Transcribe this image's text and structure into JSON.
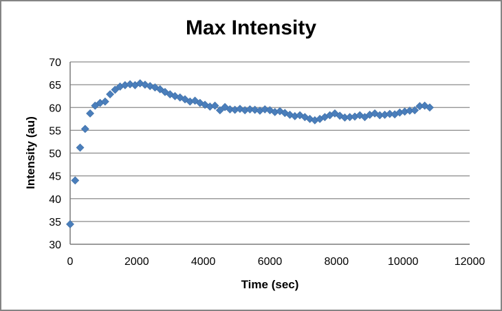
{
  "chart_data": {
    "type": "scatter",
    "title": "Max Intensity",
    "xlabel": "Time (sec)",
    "ylabel": "Intensity (au)",
    "xlim": [
      0,
      12000
    ],
    "ylim": [
      30,
      70
    ],
    "x_ticks": [
      0,
      2000,
      4000,
      6000,
      8000,
      10000,
      12000
    ],
    "y_ticks": [
      30,
      35,
      40,
      45,
      50,
      55,
      60,
      65,
      70
    ],
    "grid": "horizontal",
    "legend": "none",
    "marker": "diamond",
    "marker_color": "#4a7ebb",
    "marker_edge_color": "#3e6ea5",
    "gridline_color": "#8a8a8a",
    "axis_line_color": "#7a7a7a",
    "series": [
      {
        "name": "Max Intensity",
        "x": [
          0,
          150,
          300,
          450,
          600,
          750,
          900,
          1050,
          1200,
          1350,
          1500,
          1650,
          1800,
          1950,
          2100,
          2250,
          2400,
          2550,
          2700,
          2850,
          3000,
          3150,
          3300,
          3450,
          3600,
          3750,
          3900,
          4050,
          4200,
          4350,
          4500,
          4650,
          4800,
          4950,
          5100,
          5250,
          5400,
          5550,
          5700,
          5850,
          6000,
          6150,
          6300,
          6450,
          6600,
          6750,
          6900,
          7050,
          7200,
          7350,
          7500,
          7650,
          7800,
          7950,
          8100,
          8250,
          8400,
          8550,
          8700,
          8850,
          9000,
          9150,
          9300,
          9450,
          9600,
          9750,
          9900,
          10050,
          10200,
          10350,
          10500,
          10650,
          10800
        ],
        "y": [
          34.4,
          44.0,
          51.2,
          55.3,
          58.7,
          60.4,
          61.0,
          61.3,
          62.9,
          63.9,
          64.6,
          64.9,
          65.1,
          64.9,
          65.3,
          65.0,
          64.7,
          64.4,
          64.0,
          63.4,
          62.9,
          62.5,
          62.2,
          61.8,
          61.3,
          61.5,
          61.0,
          60.6,
          60.2,
          60.4,
          59.4,
          60.1,
          59.6,
          59.5,
          59.7,
          59.4,
          59.6,
          59.5,
          59.3,
          59.6,
          59.4,
          59.0,
          59.2,
          58.8,
          58.4,
          58.1,
          58.3,
          57.9,
          57.5,
          57.2,
          57.5,
          57.9,
          58.3,
          58.7,
          58.2,
          57.8,
          57.9,
          58.0,
          58.3,
          57.9,
          58.4,
          58.7,
          58.3,
          58.4,
          58.6,
          58.5,
          58.9,
          59.1,
          59.3,
          59.4,
          60.3,
          60.4,
          60.0
        ]
      }
    ]
  }
}
